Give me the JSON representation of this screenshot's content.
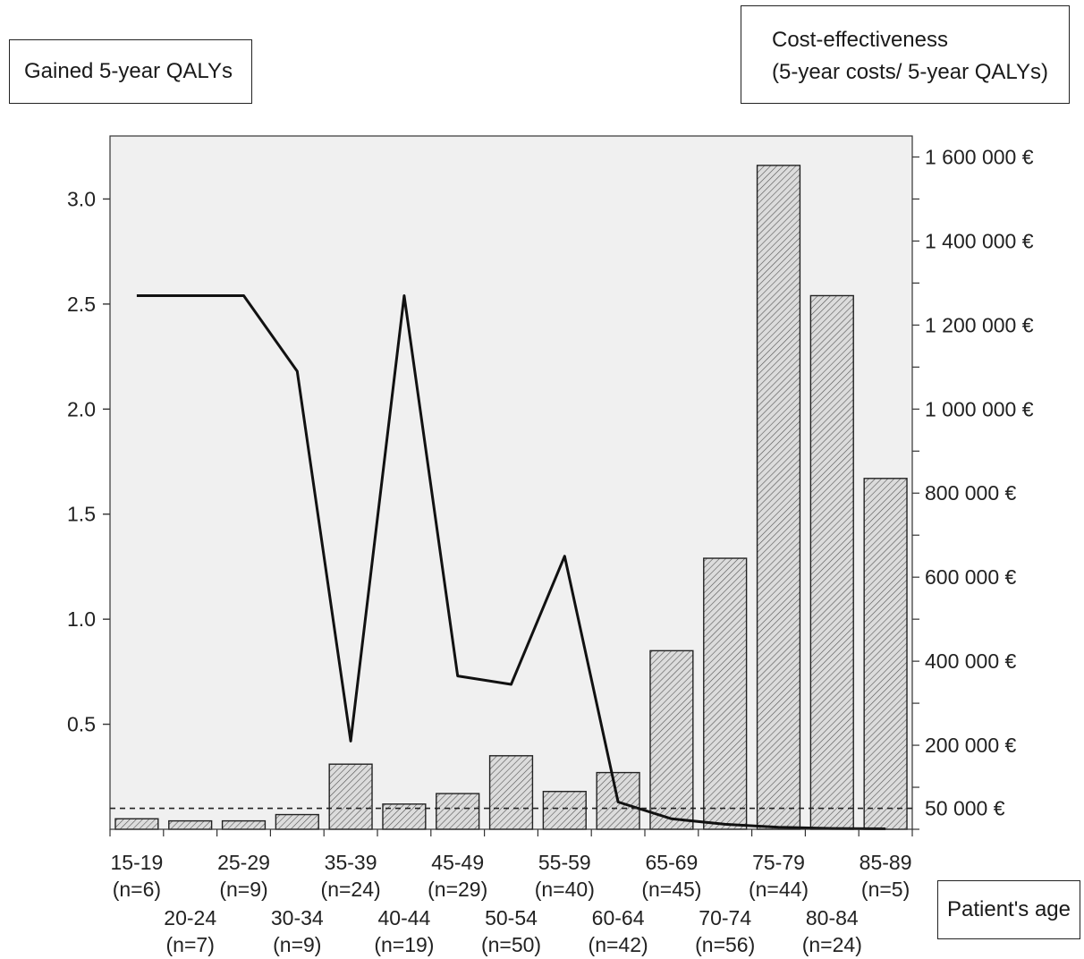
{
  "chart_data": {
    "type": "bar",
    "left_axis_title": "Gained 5-year QALYs",
    "right_axis_title_line1": "Cost-effectiveness",
    "right_axis_title_line2": "(5-year costs/ 5-year QALYs)",
    "xlabel": "Patient's age",
    "categories": [
      "15-19",
      "20-24",
      "25-29",
      "30-34",
      "35-39",
      "40-44",
      "45-49",
      "50-54",
      "55-59",
      "60-64",
      "65-69",
      "70-74",
      "75-79",
      "80-84",
      "85-89"
    ],
    "category_counts": [
      "(n=6)",
      "(n=7)",
      "(n=9)",
      "(n=9)",
      "(n=24)",
      "(n=19)",
      "(n=29)",
      "(n=50)",
      "(n=40)",
      "(n=42)",
      "(n=45)",
      "(n=56)",
      "(n=44)",
      "(n=24)",
      "(n=5)"
    ],
    "series": [
      {
        "axis": "left",
        "type": "bar",
        "pattern": "hatched",
        "values": [
          0.05,
          0.04,
          0.04,
          0.07,
          0.31,
          0.12,
          0.17,
          0.35,
          0.18,
          0.27,
          0.85,
          1.29,
          3.16,
          2.54,
          1.67
        ]
      },
      {
        "axis": "right",
        "type": "line",
        "values": [
          1270000,
          1270000,
          1270000,
          1090000,
          210000,
          1270000,
          365000,
          345000,
          650000,
          65000,
          25000,
          12000,
          5000,
          2000,
          1000
        ]
      }
    ],
    "reference_line": {
      "axis": "right",
      "value": 50000,
      "style": "dashed"
    },
    "left_ticks": [
      "0.5",
      "1.0",
      "1.5",
      "2.0",
      "2.5",
      "3.0"
    ],
    "right_tick_labels": [
      "1 600 000 €",
      "1 400 000 €",
      "1 200 000 €",
      "1 000 000 €",
      "800 000 €",
      "600 000 €",
      "400 000 €",
      "200 000  €",
      "50 000 €"
    ],
    "left_ylim": [
      0,
      3.3
    ],
    "right_ylim": [
      0,
      1650000
    ],
    "grid": false,
    "colors": {
      "plot_background": "#f0f0f0",
      "bar_fill": "#d6d6d6",
      "line": "#111111"
    }
  }
}
